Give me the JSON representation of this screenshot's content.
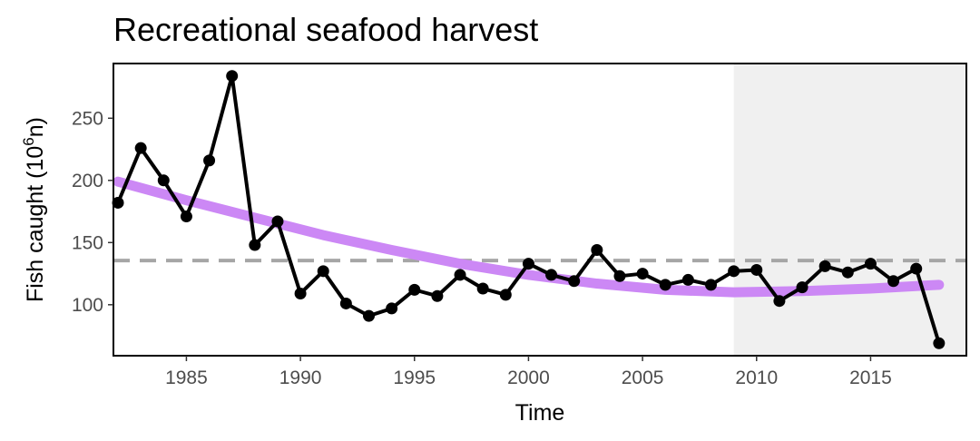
{
  "chart_data": {
    "type": "line",
    "title": "Recreational seafood harvest",
    "xlabel": "Time",
    "ylabel": {
      "prefix": "Fish caught (10",
      "superscript": "6",
      "suffix": "n)"
    },
    "xlim": [
      1981.8,
      2019.2
    ],
    "ylim": [
      59,
      294
    ],
    "x_ticks": [
      1985,
      1990,
      1995,
      2000,
      2005,
      2010,
      2015
    ],
    "y_ticks": [
      100,
      150,
      200,
      250
    ],
    "grid": false,
    "shaded_region": {
      "x_start": 2009,
      "x_end": 2019.2,
      "color": "#f0f0f0"
    },
    "reference_line": {
      "y": 135.5,
      "style": "dashed",
      "color": "#a6a6a6"
    },
    "series": [
      {
        "type": "line-points",
        "color": "#000000",
        "x": [
          1982,
          1983,
          1984,
          1985,
          1986,
          1987,
          1988,
          1989,
          1990,
          1991,
          1992,
          1993,
          1994,
          1995,
          1996,
          1997,
          1998,
          1999,
          2000,
          2001,
          2002,
          2003,
          2004,
          2005,
          2006,
          2007,
          2008,
          2009,
          2010,
          2011,
          2012,
          2013,
          2014,
          2015,
          2016,
          2017,
          2018
        ],
        "values": [
          182,
          226,
          200,
          171,
          216,
          284,
          148,
          167,
          109,
          127,
          101,
          91,
          97,
          112,
          107,
          124,
          113,
          108,
          133,
          124,
          119,
          144,
          123,
          125,
          116,
          120,
          116,
          127,
          128,
          103,
          114,
          131,
          126,
          133,
          119,
          129,
          69
        ]
      },
      {
        "type": "trend",
        "color": "#cc88f5",
        "x": [
          1982,
          1985,
          1988,
          1991,
          1994,
          1997,
          2000,
          2003,
          2006,
          2009,
          2012,
          2015,
          2018
        ],
        "values": [
          199,
          184,
          170,
          156,
          144,
          133,
          124,
          117,
          112,
          110,
          111,
          113,
          116
        ]
      }
    ]
  }
}
